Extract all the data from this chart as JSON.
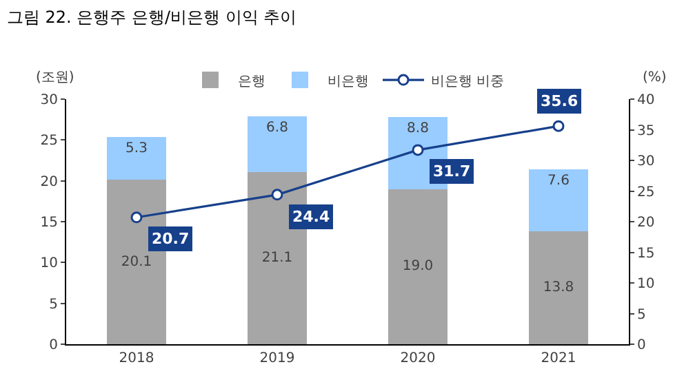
{
  "chart_data": {
    "type": "bar",
    "title": "그림 22. 은행주 은행/비은행 이익 추이",
    "ylabel": "(조원)",
    "y2label": "(%)",
    "categories": [
      "2018",
      "2019",
      "2020",
      "2021"
    ],
    "stacked": true,
    "series": [
      {
        "name": "은행",
        "color": "#a6a6a6",
        "values": [
          20.1,
          21.1,
          19.0,
          13.8
        ],
        "value_labels": [
          "20.1",
          "21.1",
          "19.0",
          "13.8"
        ]
      },
      {
        "name": "비은행",
        "color": "#99ccff",
        "values": [
          5.3,
          6.8,
          8.8,
          7.6
        ],
        "value_labels": [
          "5.3",
          "6.8",
          "8.8",
          "7.6"
        ]
      },
      {
        "name": "비은행 비중",
        "type": "line",
        "axis": "y2",
        "color": "#17408b",
        "marker": "circle",
        "values": [
          20.7,
          24.4,
          31.7,
          35.6
        ]
      }
    ],
    "ylim": [
      0,
      30
    ],
    "yticks": [
      0,
      5,
      10,
      15,
      20,
      25,
      30
    ],
    "y2lim": [
      0,
      40
    ],
    "y2ticks": [
      0,
      5,
      10,
      15,
      20,
      25,
      30,
      35,
      40
    ],
    "data_labels": true,
    "grid": false,
    "legend": "top"
  }
}
